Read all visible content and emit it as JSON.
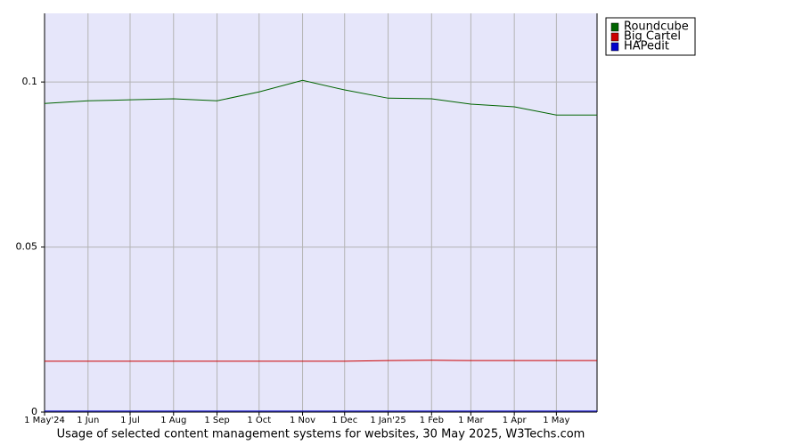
{
  "chart_data": {
    "type": "line",
    "caption": "Usage of selected content management systems for websites, 30 May 2025, W3Techs.com",
    "x": [
      0,
      31,
      61,
      92,
      123,
      153,
      184,
      214,
      245,
      276,
      304,
      335,
      365,
      394
    ],
    "xlim": [
      0,
      394
    ],
    "xticks": [
      {
        "value": 0,
        "label": "1 May'24"
      },
      {
        "value": 31,
        "label": "1 Jun"
      },
      {
        "value": 61,
        "label": "1 Jul"
      },
      {
        "value": 92,
        "label": "1 Aug"
      },
      {
        "value": 123,
        "label": "1 Sep"
      },
      {
        "value": 153,
        "label": "1 Oct"
      },
      {
        "value": 184,
        "label": "1 Nov"
      },
      {
        "value": 214,
        "label": "1 Dec"
      },
      {
        "value": 245,
        "label": "1 Jan'25"
      },
      {
        "value": 276,
        "label": "1 Feb"
      },
      {
        "value": 304,
        "label": "1 Mar"
      },
      {
        "value": 335,
        "label": "1 Apr"
      },
      {
        "value": 365,
        "label": "1 May"
      }
    ],
    "ylim": [
      0,
      0.1208
    ],
    "yticks": [
      0,
      0.05,
      0.1
    ],
    "grid": true,
    "legend": "outside-right-top",
    "series": [
      {
        "name": "Roundcube",
        "color": "#006400",
        "values": [
          0.0935,
          0.0943,
          0.0946,
          0.0949,
          0.0943,
          0.097,
          0.1005,
          0.0976,
          0.0951,
          0.0949,
          0.0933,
          0.0925,
          0.09,
          0.09
        ]
      },
      {
        "name": "Big Cartel",
        "color": "#cc0000",
        "values": [
          0.0154,
          0.0154,
          0.0154,
          0.0154,
          0.0154,
          0.0154,
          0.0154,
          0.0154,
          0.0156,
          0.0157,
          0.0156,
          0.0156,
          0.0156,
          0.0156
        ]
      },
      {
        "name": "HAPedit",
        "color": "#0000cc",
        "values": [
          0.0003,
          0.0003,
          0.0003,
          0.0003,
          0.0003,
          0.0003,
          0.0003,
          0.0003,
          0.0003,
          0.0003,
          0.0003,
          0.0003,
          0.0003,
          0.0003
        ]
      }
    ]
  }
}
